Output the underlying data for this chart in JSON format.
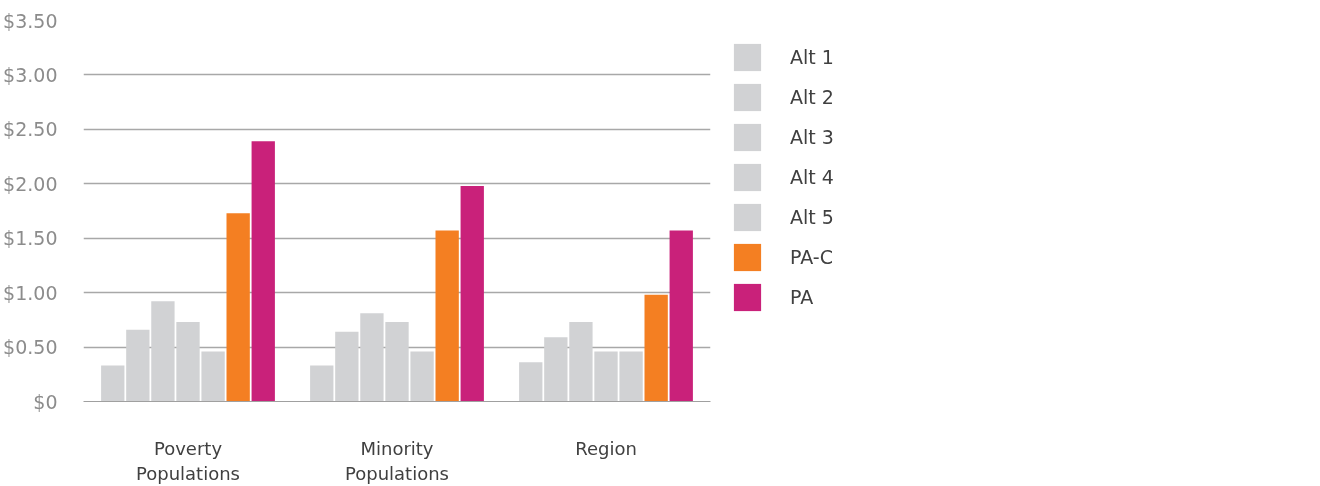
{
  "chart_data": {
    "type": "bar",
    "categories": [
      "Poverty Populations",
      "Minority Populations",
      "Region"
    ],
    "series": [
      {
        "name": "Alt 1",
        "color": "#d1d2d4",
        "values": [
          0.33,
          0.33,
          0.36
        ]
      },
      {
        "name": "Alt 2",
        "color": "#d1d2d4",
        "values": [
          0.66,
          0.64,
          0.59
        ]
      },
      {
        "name": "Alt 3",
        "color": "#d1d2d4",
        "values": [
          0.92,
          0.81,
          0.73
        ]
      },
      {
        "name": "Alt 4",
        "color": "#d1d2d4",
        "values": [
          0.73,
          0.73,
          0.46
        ]
      },
      {
        "name": "Alt 5",
        "color": "#d1d2d4",
        "values": [
          0.46,
          0.46,
          0.46
        ]
      },
      {
        "name": "PA-C",
        "color": "#f47f22",
        "values": [
          1.73,
          1.57,
          0.98
        ]
      },
      {
        "name": "PA",
        "color": "#c9217a",
        "values": [
          2.39,
          1.98,
          1.57
        ]
      }
    ],
    "ylim": [
      0,
      3.5
    ],
    "yticks": [
      {
        "value": 0,
        "label": "$0"
      },
      {
        "value": 0.5,
        "label": "$0.50"
      },
      {
        "value": 1,
        "label": "$1.00"
      },
      {
        "value": 1.5,
        "label": "$1.50"
      },
      {
        "value": 2,
        "label": "$2.00"
      },
      {
        "value": 2.5,
        "label": "$2.50"
      },
      {
        "value": 3,
        "label": "$3.00"
      },
      {
        "value": 3.5,
        "label": "$3.50"
      }
    ],
    "grid": "y",
    "legend": "right"
  }
}
